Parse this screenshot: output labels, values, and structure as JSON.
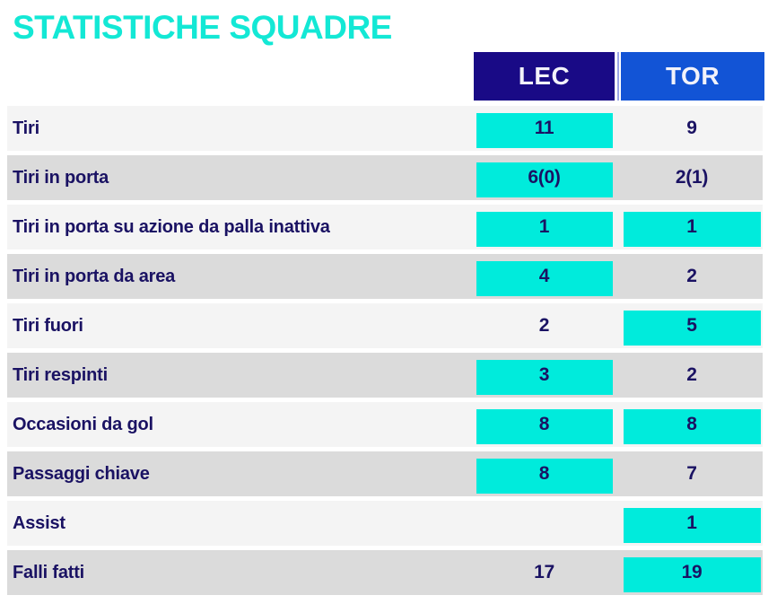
{
  "title": "STATISTICHE SQUADRE",
  "teams": {
    "home": "LEC",
    "away": "TOR"
  },
  "colors": {
    "accent_cyan": "#13E8D5",
    "highlight": "#00EBDC",
    "header_home_bg": "#190A86",
    "header_away_bg": "#1254D6",
    "header_text": "#F2F2FA",
    "navy_text": "#1A1263",
    "row_light": "#F4F4F4",
    "row_dark": "#DBDBDB",
    "divider_line": "#9AA6E6"
  },
  "chart_data": {
    "type": "table",
    "title": "STATISTICHE SQUADRE",
    "columns": [
      "LEC",
      "TOR"
    ],
    "highlight_meaning": "cyan box marks highlighted (leading or shared-lead) value",
    "rows": [
      {
        "label": "Tiri",
        "home": "11",
        "away": "9",
        "home_highlight": true,
        "away_highlight": false
      },
      {
        "label": "Tiri in porta",
        "home": "6(0)",
        "away": "2(1)",
        "home_highlight": true,
        "away_highlight": false
      },
      {
        "label": "Tiri in porta su azione da palla inattiva",
        "home": "1",
        "away": "1",
        "home_highlight": true,
        "away_highlight": true
      },
      {
        "label": "Tiri in porta da area",
        "home": "4",
        "away": "2",
        "home_highlight": true,
        "away_highlight": false
      },
      {
        "label": "Tiri fuori",
        "home": "2",
        "away": "5",
        "home_highlight": false,
        "away_highlight": true
      },
      {
        "label": "Tiri respinti",
        "home": "3",
        "away": "2",
        "home_highlight": true,
        "away_highlight": false
      },
      {
        "label": "Occasioni da gol",
        "home": "8",
        "away": "8",
        "home_highlight": true,
        "away_highlight": true
      },
      {
        "label": "Passaggi chiave",
        "home": "8",
        "away": "7",
        "home_highlight": true,
        "away_highlight": false
      },
      {
        "label": "Assist",
        "home": "",
        "away": "1",
        "home_highlight": false,
        "away_highlight": true
      },
      {
        "label": "Falli fatti",
        "home": "17",
        "away": "19",
        "home_highlight": false,
        "away_highlight": true
      }
    ]
  }
}
